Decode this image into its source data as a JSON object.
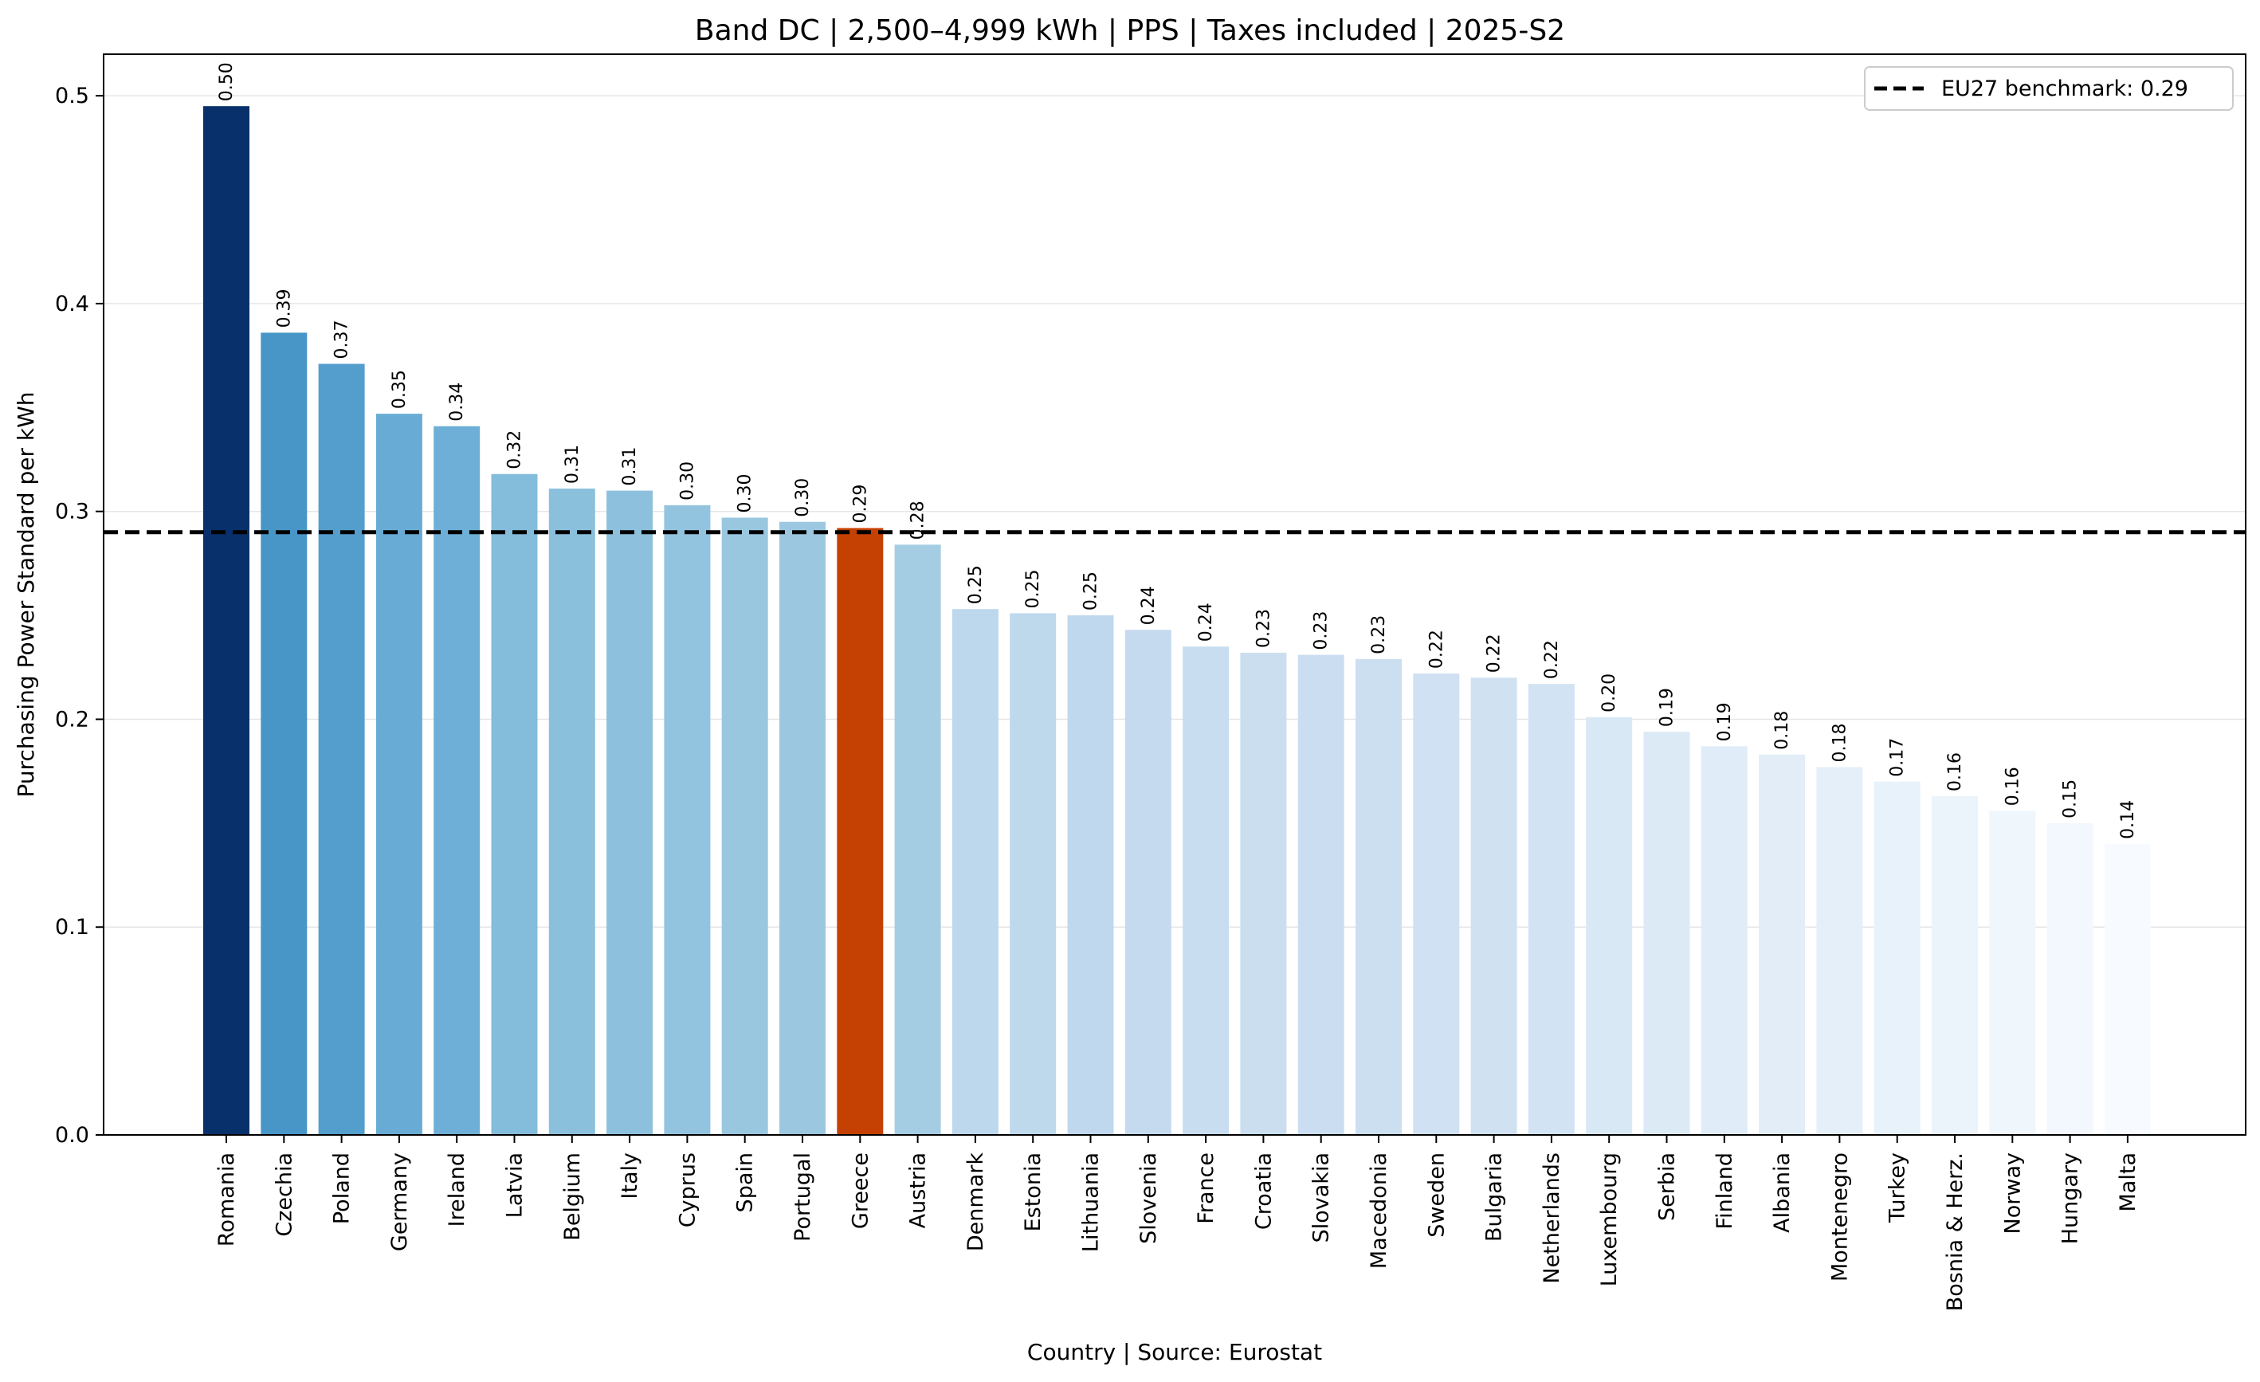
{
  "chart_data": {
    "type": "bar",
    "title": "Band DC | 2,500–4,999 kWh | PPS | Taxes included | 2025-S2",
    "xlabel": "Country | Source: Eurostat",
    "ylabel": "Purchasing Power Standard per kWh",
    "ylim": [
      0,
      0.52
    ],
    "yticks": [
      0.0,
      0.1,
      0.2,
      0.3,
      0.4,
      0.5
    ],
    "ytick_labels": [
      "0.0",
      "0.1",
      "0.2",
      "0.3",
      "0.4",
      "0.5"
    ],
    "grid": "y",
    "categories": [
      "Romania",
      "Czechia",
      "Poland",
      "Germany",
      "Ireland",
      "Latvia",
      "Belgium",
      "Italy",
      "Cyprus",
      "Spain",
      "Portugal",
      "Greece",
      "Austria",
      "Denmark",
      "Estonia",
      "Lithuania",
      "Slovenia",
      "France",
      "Croatia",
      "Slovakia",
      "Macedonia",
      "Sweden",
      "Bulgaria",
      "Netherlands",
      "Luxembourg",
      "Serbia",
      "Finland",
      "Albania",
      "Montenegro",
      "Turkey",
      "Bosnia & Herz.",
      "Norway",
      "Hungary",
      "Malta"
    ],
    "values": [
      0.495,
      0.386,
      0.371,
      0.347,
      0.341,
      0.318,
      0.311,
      0.31,
      0.303,
      0.297,
      0.295,
      0.292,
      0.284,
      0.253,
      0.251,
      0.25,
      0.243,
      0.235,
      0.232,
      0.231,
      0.229,
      0.222,
      0.22,
      0.217,
      0.201,
      0.194,
      0.187,
      0.183,
      0.177,
      0.17,
      0.163,
      0.156,
      0.15,
      0.14
    ],
    "value_labels": [
      "0.50",
      "0.39",
      "0.37",
      "0.35",
      "0.34",
      "0.32",
      "0.31",
      "0.31",
      "0.30",
      "0.30",
      "0.30",
      "0.29",
      "0.28",
      "0.25",
      "0.25",
      "0.25",
      "0.24",
      "0.24",
      "0.23",
      "0.23",
      "0.23",
      "0.22",
      "0.22",
      "0.22",
      "0.20",
      "0.19",
      "0.19",
      "0.18",
      "0.18",
      "0.17",
      "0.16",
      "0.16",
      "0.15",
      "0.14"
    ],
    "highlight": {
      "category": "Greece",
      "color": "#c44103"
    },
    "color_scale": [
      "#f7fbff",
      "#deebf7",
      "#c6dbef",
      "#9ecae1",
      "#6baed6",
      "#4292c6",
      "#2171b5",
      "#08306b"
    ],
    "reference_line": {
      "value": 0.29,
      "label": "EU27 benchmark: 0.29",
      "style": "dashed",
      "color": "#000000"
    },
    "legend_position": "top-right"
  }
}
